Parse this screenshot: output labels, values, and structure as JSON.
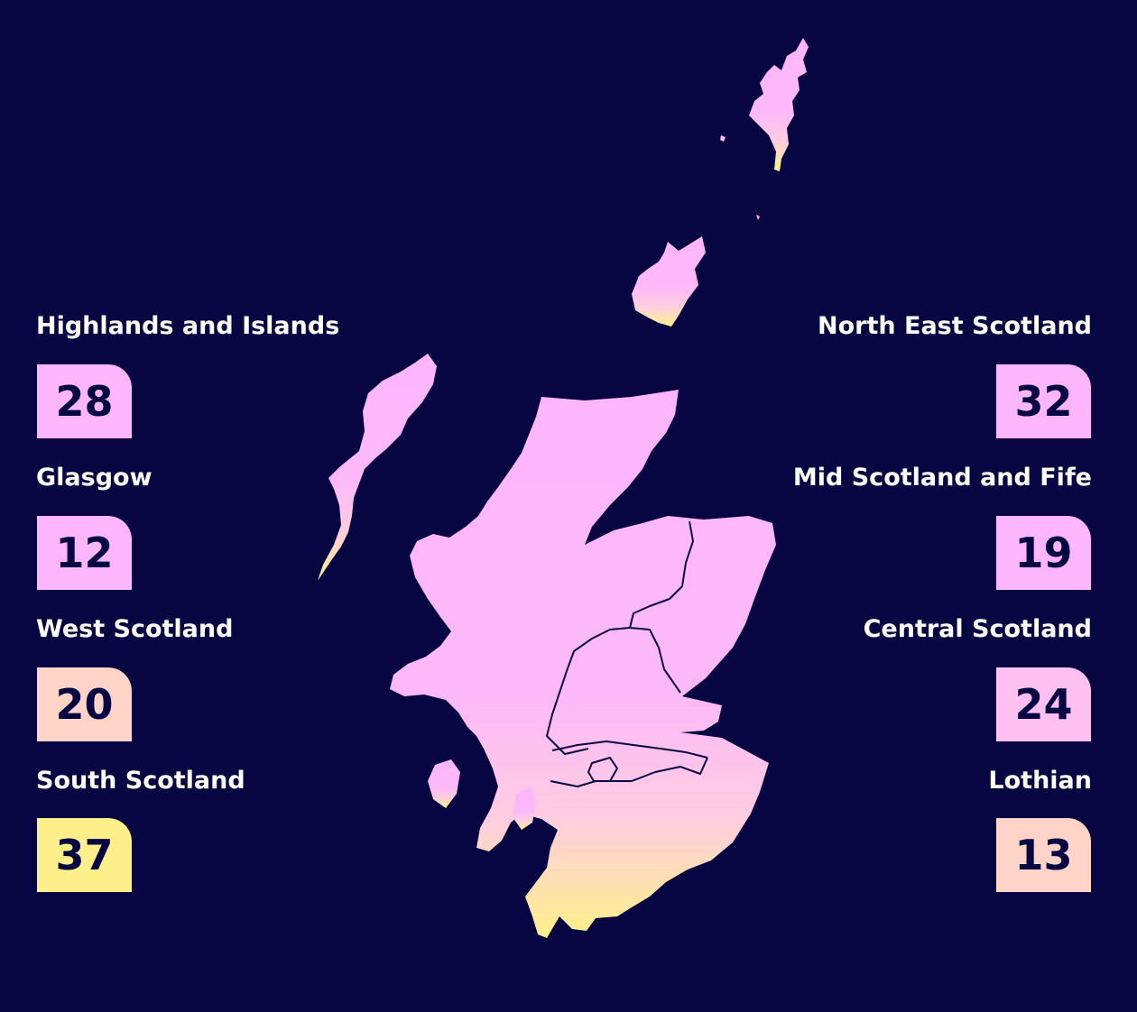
{
  "regions": [
    {
      "name": "Highlands and Islands",
      "value": "28",
      "color": "#fdb6fb",
      "side": "left"
    },
    {
      "name": "Glasgow",
      "value": "12",
      "color": "#fdb6fb",
      "side": "left"
    },
    {
      "name": "West Scotland",
      "value": "20",
      "color": "#fed4c8",
      "side": "left"
    },
    {
      "name": "South Scotland",
      "value": "37",
      "color": "#fdf08a",
      "side": "left"
    },
    {
      "name": "North East Scotland",
      "value": "32",
      "color": "#fdb6fb",
      "side": "right"
    },
    {
      "name": "Mid Scotland and Fife",
      "value": "19",
      "color": "#fdb6fb",
      "side": "right"
    },
    {
      "name": "Central Scotland",
      "value": "24",
      "color": "#fdc0f0",
      "side": "right"
    },
    {
      "name": "Lothian",
      "value": "13",
      "color": "#fed4c8",
      "side": "right"
    }
  ],
  "colors": {
    "background": "#070542",
    "map_top": "#fdb6fb",
    "map_mid": "#fec6e6",
    "map_bottom": "#fdf08a",
    "boundary": "#070542"
  }
}
